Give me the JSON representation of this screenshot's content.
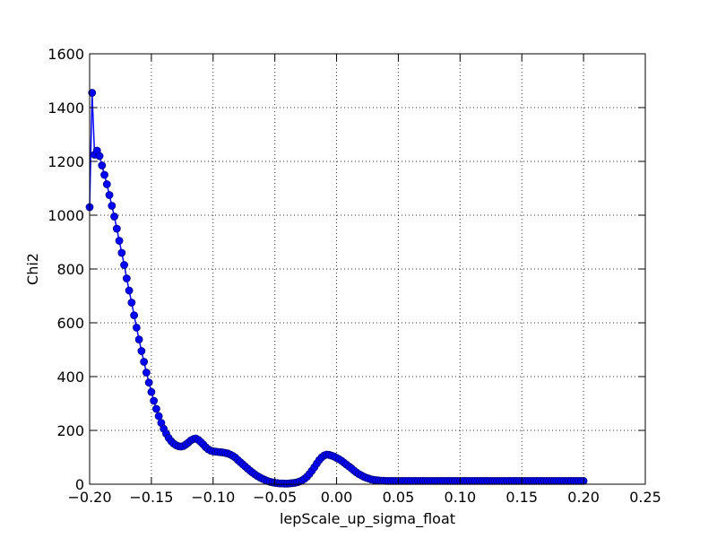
{
  "chart_data": {
    "type": "line",
    "title": "",
    "xlabel": "lepScale_up_sigma_float",
    "ylabel": "Chi2",
    "xlim": [
      -0.2,
      0.25
    ],
    "ylim": [
      0,
      1600
    ],
    "xticks": [
      -0.2,
      -0.15,
      -0.1,
      -0.05,
      0.0,
      0.05,
      0.1,
      0.15,
      0.2,
      0.25
    ],
    "xtick_labels": [
      "−0.20",
      "−0.15",
      "−0.10",
      "−0.05",
      "0.00",
      "0.05",
      "0.10",
      "0.15",
      "0.20",
      "0.25"
    ],
    "yticks": [
      0,
      200,
      400,
      600,
      800,
      1000,
      1200,
      1400,
      1600
    ],
    "ytick_labels": [
      "0",
      "200",
      "400",
      "600",
      "800",
      "1000",
      "1200",
      "1400",
      "1600"
    ],
    "grid": true,
    "legend": "none",
    "series_color": "#0000ff",
    "marker_edge_color": "#000080",
    "marker": "circle",
    "series": [
      {
        "x": [
          -0.2,
          -0.198,
          -0.196,
          -0.194,
          -0.192,
          -0.19,
          -0.188,
          -0.186,
          -0.184,
          -0.182,
          -0.18,
          -0.178,
          -0.176,
          -0.174,
          -0.172,
          -0.17,
          -0.168,
          -0.166,
          -0.164,
          -0.162,
          -0.16,
          -0.158,
          -0.156,
          -0.154,
          -0.152,
          -0.15,
          -0.148,
          -0.146,
          -0.144,
          -0.142,
          -0.14,
          -0.138,
          -0.136,
          -0.134,
          -0.132,
          -0.13,
          -0.128,
          -0.126,
          -0.124,
          -0.122,
          -0.12,
          -0.118,
          -0.116,
          -0.114,
          -0.112,
          -0.11,
          -0.108,
          -0.106,
          -0.104,
          -0.102,
          -0.1,
          -0.098,
          -0.096,
          -0.094,
          -0.092,
          -0.09,
          -0.088,
          -0.086,
          -0.084,
          -0.082,
          -0.08,
          -0.078,
          -0.076,
          -0.074,
          -0.072,
          -0.07,
          -0.068,
          -0.066,
          -0.064,
          -0.062,
          -0.06,
          -0.058,
          -0.056,
          -0.054,
          -0.052,
          -0.05,
          -0.048,
          -0.046,
          -0.044,
          -0.042,
          -0.04,
          -0.038,
          -0.036,
          -0.034,
          -0.032,
          -0.03,
          -0.028,
          -0.026,
          -0.024,
          -0.022,
          -0.02,
          -0.018,
          -0.016,
          -0.014,
          -0.012,
          -0.01,
          -0.008,
          -0.006,
          -0.004,
          -0.002,
          0.0,
          0.002,
          0.004,
          0.006,
          0.008,
          0.01,
          0.012,
          0.014,
          0.016,
          0.018,
          0.02,
          0.022,
          0.024,
          0.026,
          0.028,
          0.03,
          0.032,
          0.034,
          0.036,
          0.038,
          0.04,
          0.042,
          0.044,
          0.046,
          0.048,
          0.05,
          0.052,
          0.054,
          0.056,
          0.058,
          0.06,
          0.062,
          0.064,
          0.066,
          0.068,
          0.07,
          0.072,
          0.074,
          0.076,
          0.078,
          0.08,
          0.082,
          0.084,
          0.086,
          0.088,
          0.09,
          0.092,
          0.094,
          0.096,
          0.098,
          0.1,
          0.102,
          0.104,
          0.106,
          0.108,
          0.11,
          0.112,
          0.114,
          0.116,
          0.118,
          0.12,
          0.122,
          0.124,
          0.126,
          0.128,
          0.13,
          0.132,
          0.134,
          0.136,
          0.138,
          0.14,
          0.142,
          0.144,
          0.146,
          0.148,
          0.15,
          0.152,
          0.154,
          0.156,
          0.158,
          0.16,
          0.162,
          0.164,
          0.166,
          0.168,
          0.17,
          0.172,
          0.174,
          0.176,
          0.178,
          0.18,
          0.182,
          0.184,
          0.186,
          0.188,
          0.19,
          0.192,
          0.194,
          0.196,
          0.198,
          0.2
        ],
        "y": [
          1030,
          1455,
          1225,
          1240,
          1220,
          1185,
          1150,
          1115,
          1075,
          1035,
          995,
          950,
          905,
          860,
          815,
          765,
          720,
          675,
          628,
          582,
          538,
          495,
          455,
          415,
          378,
          343,
          310,
          280,
          253,
          228,
          206,
          188,
          172,
          160,
          151,
          145,
          141,
          140,
          142,
          148,
          155,
          163,
          168,
          170,
          165,
          157,
          148,
          138,
          130,
          125,
          122,
          121,
          120,
          119,
          118,
          116,
          114,
          110,
          105,
          99,
          90,
          82,
          74,
          66,
          58,
          50,
          43,
          36,
          30,
          25,
          20,
          16,
          12,
          9,
          7,
          5,
          4,
          3,
          3,
          2,
          2,
          3,
          4,
          5,
          7,
          10,
          14,
          20,
          28,
          38,
          50,
          63,
          77,
          90,
          100,
          107,
          110,
          109,
          106,
          103,
          98,
          93,
          87,
          80,
          73,
          66,
          59,
          51,
          44,
          38,
          33,
          28,
          24,
          21,
          18,
          16,
          15,
          14,
          13,
          13,
          12,
          12,
          12,
          12,
          12,
          12,
          12,
          12,
          12,
          12,
          12,
          12,
          12,
          12,
          12,
          12,
          12,
          12,
          12,
          12,
          12,
          12,
          12,
          12,
          12,
          12,
          12,
          12,
          12,
          12,
          12,
          12,
          12,
          12,
          12,
          12,
          12,
          12,
          12,
          12,
          12,
          12,
          12,
          12,
          12,
          12,
          12,
          12,
          12,
          12,
          12,
          12,
          12,
          12,
          12,
          12,
          12,
          12,
          12,
          12,
          12,
          12,
          12,
          12,
          12,
          12,
          12,
          12,
          12,
          12,
          12,
          12,
          12,
          12,
          12,
          12,
          12,
          12,
          12,
          12,
          12
        ]
      }
    ]
  }
}
